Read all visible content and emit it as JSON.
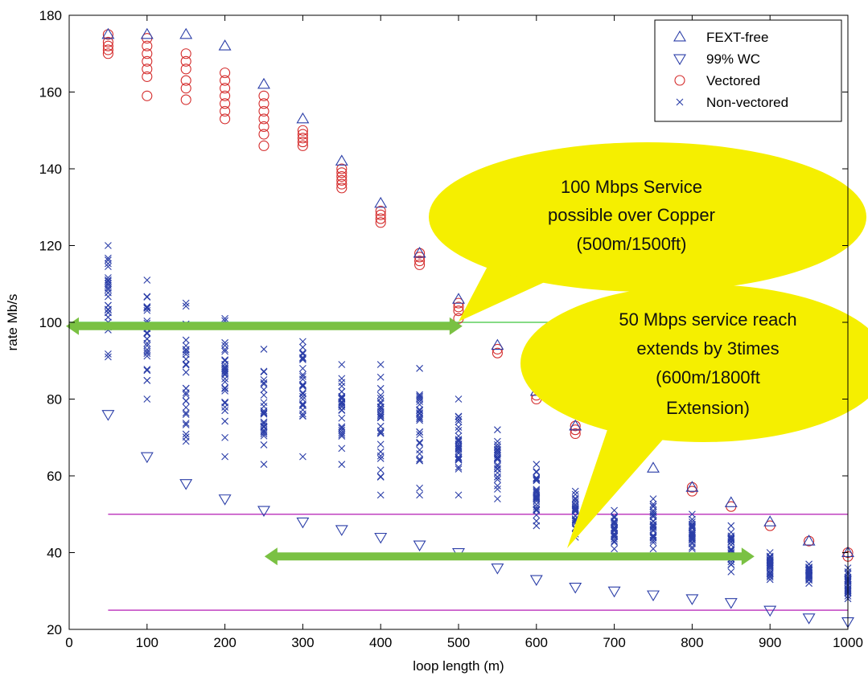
{
  "chart_data": {
    "type": "scatter",
    "xlabel": "loop length (m)",
    "ylabel": "rate Mb/s",
    "xlim": [
      0,
      1000
    ],
    "ylim": [
      20,
      180
    ],
    "xticks": [
      "0",
      "100",
      "200",
      "300",
      "400",
      "500",
      "600",
      "700",
      "800",
      "900",
      "1000"
    ],
    "yticks": [
      "20",
      "40",
      "60",
      "80",
      "100",
      "120",
      "140",
      "160",
      "180"
    ],
    "grid": false,
    "legend_position": "top-right",
    "x": [
      50,
      100,
      150,
      200,
      250,
      300,
      350,
      400,
      450,
      500,
      550,
      600,
      650,
      700,
      750,
      800,
      850,
      900,
      950,
      1000
    ],
    "series": [
      {
        "name": "FEXT-free",
        "marker": "triangle-up",
        "color": "#2b3ea8",
        "values": [
          175,
          175,
          175,
          172,
          162,
          153,
          142,
          131,
          118,
          106,
          94,
          82,
          73,
          67,
          62,
          57,
          53,
          48,
          43,
          40
        ]
      },
      {
        "name": "99% WC",
        "marker": "triangle-down",
        "color": "#2b3ea8",
        "values": [
          76,
          65,
          58,
          54,
          51,
          48,
          46,
          44,
          42,
          40,
          36,
          33,
          31,
          30,
          29,
          28,
          27,
          25,
          23,
          22
        ]
      },
      {
        "name": "Vectored",
        "marker": "circle",
        "color": "#d42a2a",
        "points": [
          [
            50,
            175
          ],
          [
            50,
            173
          ],
          [
            50,
            172
          ],
          [
            50,
            171
          ],
          [
            50,
            170
          ],
          [
            100,
            174
          ],
          [
            100,
            172
          ],
          [
            100,
            170
          ],
          [
            100,
            168
          ],
          [
            100,
            166
          ],
          [
            100,
            164
          ],
          [
            100,
            159
          ],
          [
            150,
            170
          ],
          [
            150,
            168
          ],
          [
            150,
            166
          ],
          [
            150,
            163
          ],
          [
            150,
            161
          ],
          [
            150,
            158
          ],
          [
            200,
            165
          ],
          [
            200,
            163
          ],
          [
            200,
            161
          ],
          [
            200,
            159
          ],
          [
            200,
            157
          ],
          [
            200,
            155
          ],
          [
            200,
            153
          ],
          [
            250,
            159
          ],
          [
            250,
            157
          ],
          [
            250,
            155
          ],
          [
            250,
            153
          ],
          [
            250,
            151
          ],
          [
            250,
            149
          ],
          [
            250,
            146
          ],
          [
            300,
            150
          ],
          [
            300,
            149
          ],
          [
            300,
            148
          ],
          [
            300,
            147
          ],
          [
            300,
            146
          ],
          [
            350,
            140
          ],
          [
            350,
            139
          ],
          [
            350,
            138
          ],
          [
            350,
            137
          ],
          [
            350,
            136
          ],
          [
            350,
            135
          ],
          [
            400,
            129
          ],
          [
            400,
            128
          ],
          [
            400,
            127
          ],
          [
            400,
            126
          ],
          [
            450,
            118
          ],
          [
            450,
            117
          ],
          [
            450,
            116
          ],
          [
            450,
            115
          ],
          [
            500,
            105
          ],
          [
            500,
            104
          ],
          [
            500,
            103
          ],
          [
            500,
            101
          ],
          [
            550,
            93
          ],
          [
            550,
            92
          ],
          [
            600,
            81
          ],
          [
            600,
            80
          ],
          [
            650,
            73
          ],
          [
            650,
            72
          ],
          [
            650,
            71
          ],
          [
            700,
            66
          ],
          [
            800,
            57
          ],
          [
            800,
            56
          ],
          [
            850,
            52
          ],
          [
            900,
            47
          ],
          [
            950,
            43
          ],
          [
            1000,
            40
          ],
          [
            1000,
            39
          ]
        ]
      },
      {
        "name": "Non-vectored",
        "marker": "x",
        "color": "#2b3ea8",
        "ranges": [
          {
            "x": 50,
            "min": 91,
            "max": 120
          },
          {
            "x": 100,
            "min": 80,
            "max": 111
          },
          {
            "x": 150,
            "min": 69,
            "max": 105
          },
          {
            "x": 200,
            "min": 65,
            "max": 101
          },
          {
            "x": 250,
            "min": 63,
            "max": 93
          },
          {
            "x": 300,
            "min": 65,
            "max": 95
          },
          {
            "x": 350,
            "min": 63,
            "max": 89
          },
          {
            "x": 400,
            "min": 55,
            "max": 89
          },
          {
            "x": 450,
            "min": 55,
            "max": 88
          },
          {
            "x": 500,
            "min": 55,
            "max": 80
          },
          {
            "x": 550,
            "min": 54,
            "max": 72
          },
          {
            "x": 600,
            "min": 47,
            "max": 63
          },
          {
            "x": 650,
            "min": 44,
            "max": 56
          },
          {
            "x": 700,
            "min": 41,
            "max": 51
          },
          {
            "x": 750,
            "min": 41,
            "max": 54
          },
          {
            "x": 800,
            "min": 41,
            "max": 50
          },
          {
            "x": 850,
            "min": 35,
            "max": 47
          },
          {
            "x": 900,
            "min": 33,
            "max": 40
          },
          {
            "x": 950,
            "min": 32,
            "max": 37
          },
          {
            "x": 1000,
            "min": 28,
            "max": 36
          }
        ]
      }
    ],
    "reference_lines": [
      {
        "y": 100,
        "x_range": [
          0,
          650
        ],
        "color": "#5fcf5f"
      },
      {
        "y": 50,
        "x_range": [
          50,
          1000
        ],
        "color": "#c040c0"
      },
      {
        "y": 25,
        "x_range": [
          50,
          1000
        ],
        "color": "#c040c0"
      }
    ],
    "arrows": [
      {
        "y": 99,
        "x_range": [
          0,
          505
        ],
        "color": "#7ac143"
      },
      {
        "y": 39,
        "x_range": [
          255,
          880
        ],
        "color": "#7ac143"
      }
    ],
    "callouts": [
      {
        "lines": [
          "100 Mbps Service",
          "possible over Copper",
          "(500m/1500ft)"
        ],
        "color": "#f5ef00"
      },
      {
        "lines": [
          "50 Mbps service reach",
          "extends by 3times",
          "(600m/1800ft",
          "Extension)"
        ],
        "color": "#f5ef00"
      }
    ]
  }
}
